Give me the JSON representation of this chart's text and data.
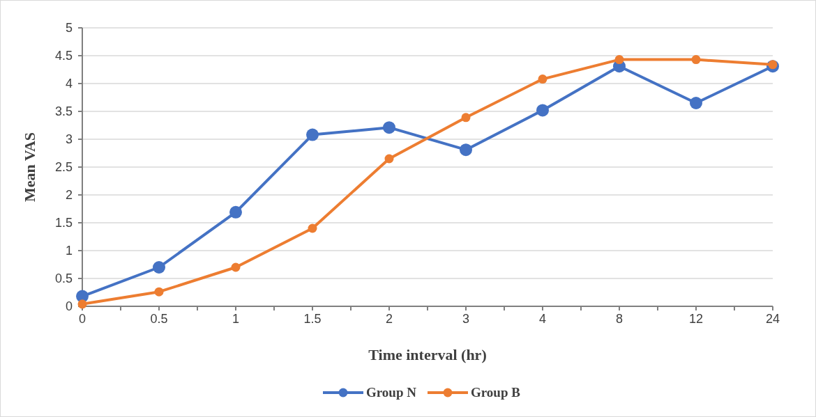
{
  "chart_data": {
    "type": "line",
    "xlabel": "Time interval (hr)",
    "ylabel": "Mean VAS",
    "categories": [
      "0",
      "0.5",
      "1",
      "1.5",
      "2",
      "3",
      "4",
      "8",
      "12",
      "24"
    ],
    "series": [
      {
        "name": "Group N",
        "color": "#4472c4",
        "values": [
          0.18,
          0.7,
          1.69,
          3.08,
          3.21,
          2.81,
          3.52,
          4.31,
          3.65,
          4.31
        ]
      },
      {
        "name": "Group B",
        "color": "#ed7d31",
        "values": [
          0.04,
          0.26,
          0.7,
          1.4,
          2.65,
          3.39,
          4.08,
          4.43,
          4.43,
          4.34
        ]
      }
    ],
    "ylim": [
      0,
      5
    ],
    "yticks": [
      0,
      0.5,
      1,
      1.5,
      2,
      2.5,
      3,
      3.5,
      4,
      4.5,
      5
    ],
    "grid": "y",
    "legend": "bottom",
    "marker": "circle",
    "line_style": "solid"
  }
}
